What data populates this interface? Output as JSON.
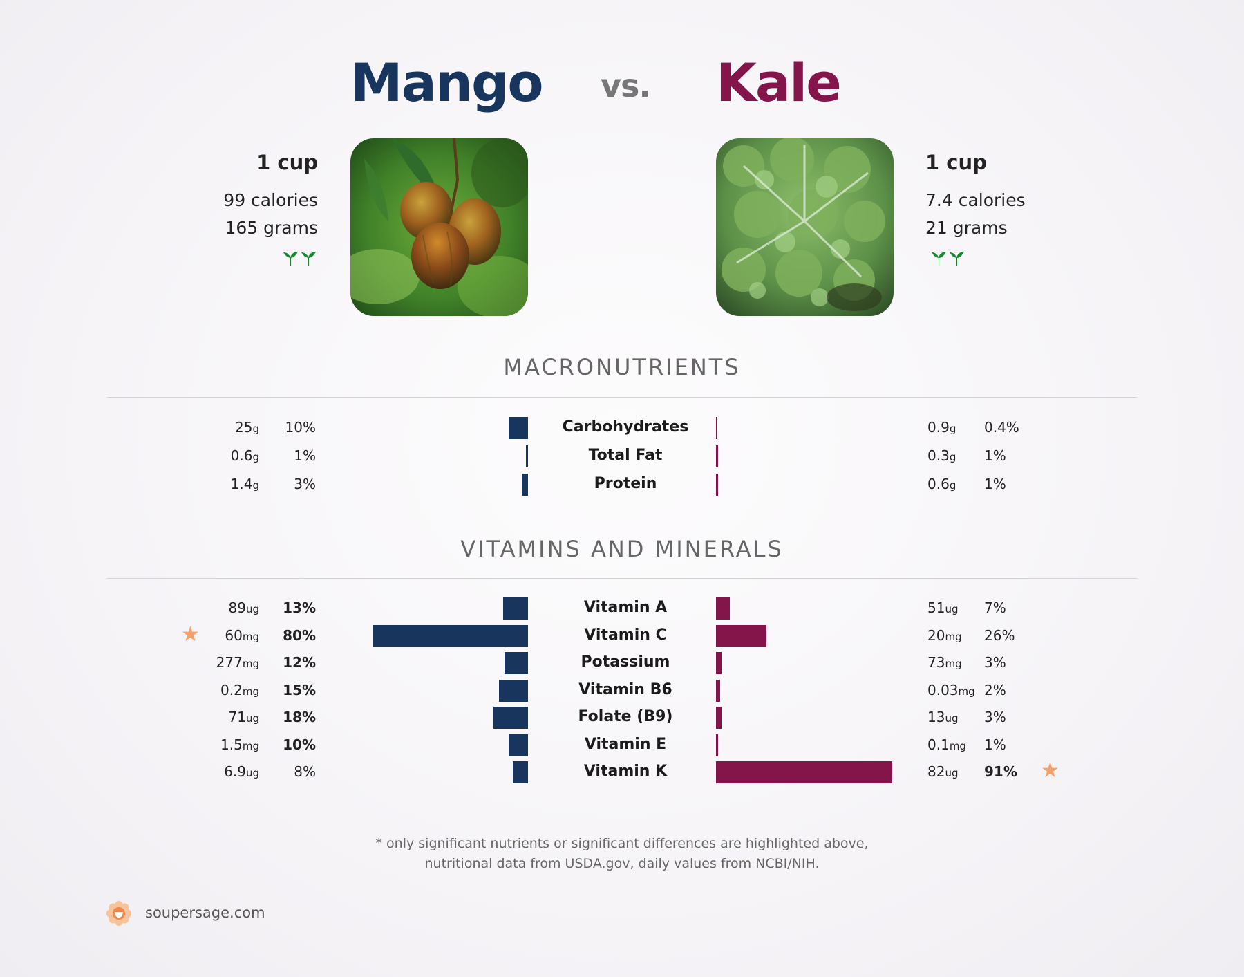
{
  "header": {
    "food_a": "Mango",
    "vs": "vs.",
    "food_b": "Kale"
  },
  "food_a": {
    "serving": "1 cup",
    "calories": "99 calories",
    "grams": "165 grams",
    "leaves_icon": "two-sprouts-icon"
  },
  "food_b": {
    "serving": "1 cup",
    "calories": "7.4 calories",
    "grams": "21 grams",
    "leaves_icon": "two-sprouts-icon"
  },
  "colors": {
    "food_a": "#17355d",
    "food_b": "#83154b",
    "star": "#f5a068",
    "leaf": "#138a2c"
  },
  "chart_data": [
    {
      "type": "bar",
      "title": "MACRONUTRIENTS",
      "orientation": "horizontal-diverging",
      "categories": [
        "Carbohydrates",
        "Total Fat",
        "Protein"
      ],
      "series": [
        {
          "name": "Mango",
          "amounts": [
            "25",
            "0.6",
            "1.4"
          ],
          "units": [
            "g",
            "g",
            "g"
          ],
          "percent_labels": [
            "10%",
            "1%",
            "3%"
          ],
          "values": [
            10,
            1,
            3
          ],
          "bold": [
            false,
            false,
            false
          ]
        },
        {
          "name": "Kale",
          "amounts": [
            "0.9",
            "0.3",
            "0.6"
          ],
          "units": [
            "g",
            "g",
            "g"
          ],
          "percent_labels": [
            "0.4%",
            "1%",
            "1%"
          ],
          "values": [
            0.4,
            1,
            1
          ],
          "bold": [
            false,
            false,
            false
          ]
        }
      ]
    },
    {
      "type": "bar",
      "title": "VITAMINS AND MINERALS",
      "orientation": "horizontal-diverging",
      "categories": [
        "Vitamin A",
        "Vitamin C",
        "Potassium",
        "Vitamin B6",
        "Folate (B9)",
        "Vitamin E",
        "Vitamin K"
      ],
      "series": [
        {
          "name": "Mango",
          "amounts": [
            "89",
            "60",
            "277",
            "0.2",
            "71",
            "1.5",
            "6.9"
          ],
          "units": [
            "ug",
            "mg",
            "mg",
            "mg",
            "ug",
            "mg",
            "ug"
          ],
          "percent_labels": [
            "13%",
            "80%",
            "12%",
            "15%",
            "18%",
            "10%",
            "8%"
          ],
          "values": [
            13,
            80,
            12,
            15,
            18,
            10,
            8
          ],
          "bold": [
            true,
            true,
            true,
            true,
            true,
            true,
            false
          ],
          "star_index": 1
        },
        {
          "name": "Kale",
          "amounts": [
            "51",
            "20",
            "73",
            "0.03",
            "13",
            "0.1",
            "82"
          ],
          "units": [
            "ug",
            "mg",
            "mg",
            "mg",
            "ug",
            "mg",
            "ug"
          ],
          "percent_labels": [
            "7%",
            "26%",
            "3%",
            "2%",
            "3%",
            "1%",
            "91%"
          ],
          "values": [
            7,
            26,
            3,
            2,
            3,
            1,
            91
          ],
          "bold": [
            false,
            false,
            false,
            false,
            false,
            false,
            true
          ],
          "star_index": 6
        }
      ]
    }
  ],
  "footnote": {
    "line1": "* only significant nutrients or significant differences are highlighted above,",
    "line2": "nutritional data from USDA.gov, daily values from NCBI/NIH."
  },
  "brand": {
    "site": "soupersage.com",
    "logo_icon": "soupersage-logo-icon"
  }
}
